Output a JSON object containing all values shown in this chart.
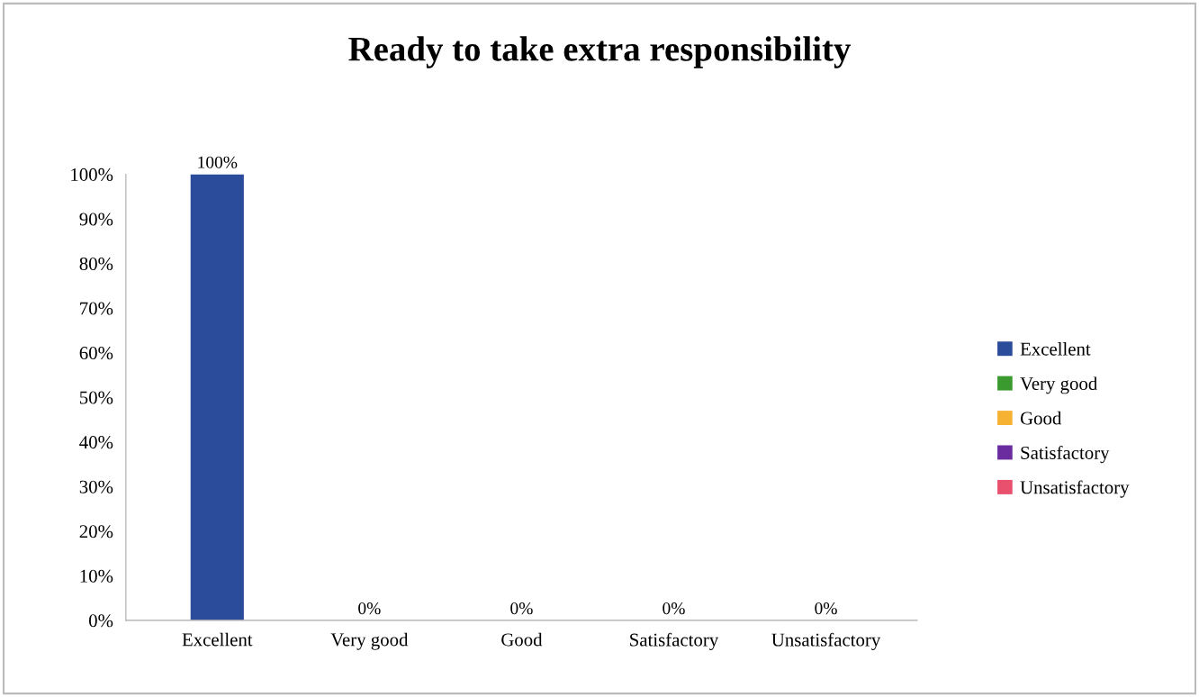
{
  "chart_data": {
    "type": "bar",
    "title": "Ready to take extra responsibility",
    "categories": [
      "Excellent",
      "Very good",
      "Good",
      "Satisfactory",
      "Unsatisfactory"
    ],
    "series": [
      {
        "name": "Excellent",
        "color": "#2b4c9b",
        "values": [
          100,
          null,
          null,
          null,
          null
        ],
        "value_labels": [
          "100%",
          null,
          null,
          null,
          null
        ]
      },
      {
        "name": "Very good",
        "color": "#3a9a30",
        "values": [
          null,
          0,
          null,
          null,
          null
        ],
        "value_labels": [
          null,
          "0%",
          null,
          null,
          null
        ]
      },
      {
        "name": "Good",
        "color": "#f5b233",
        "values": [
          null,
          null,
          0,
          null,
          null
        ],
        "value_labels": [
          null,
          null,
          "0%",
          null,
          null
        ]
      },
      {
        "name": "Satisfactory",
        "color": "#6a2c9e",
        "values": [
          null,
          null,
          null,
          0,
          null
        ],
        "value_labels": [
          null,
          null,
          null,
          "0%",
          null
        ]
      },
      {
        "name": "Unsatisfactory",
        "color": "#e8506e",
        "values": [
          null,
          null,
          null,
          null,
          0
        ],
        "value_labels": [
          null,
          null,
          null,
          null,
          "0%"
        ]
      }
    ],
    "ylim": [
      0,
      100
    ],
    "yticks": [
      {
        "value": 0,
        "label": "0%"
      },
      {
        "value": 10,
        "label": "10%"
      },
      {
        "value": 20,
        "label": "20%"
      },
      {
        "value": 30,
        "label": "30%"
      },
      {
        "value": 40,
        "label": "40%"
      },
      {
        "value": 50,
        "label": "50%"
      },
      {
        "value": 60,
        "label": "60%"
      },
      {
        "value": 70,
        "label": "70%"
      },
      {
        "value": 80,
        "label": "80%"
      },
      {
        "value": 90,
        "label": "90%"
      },
      {
        "value": 100,
        "label": "100%"
      }
    ],
    "grid": false,
    "legend": "right"
  }
}
